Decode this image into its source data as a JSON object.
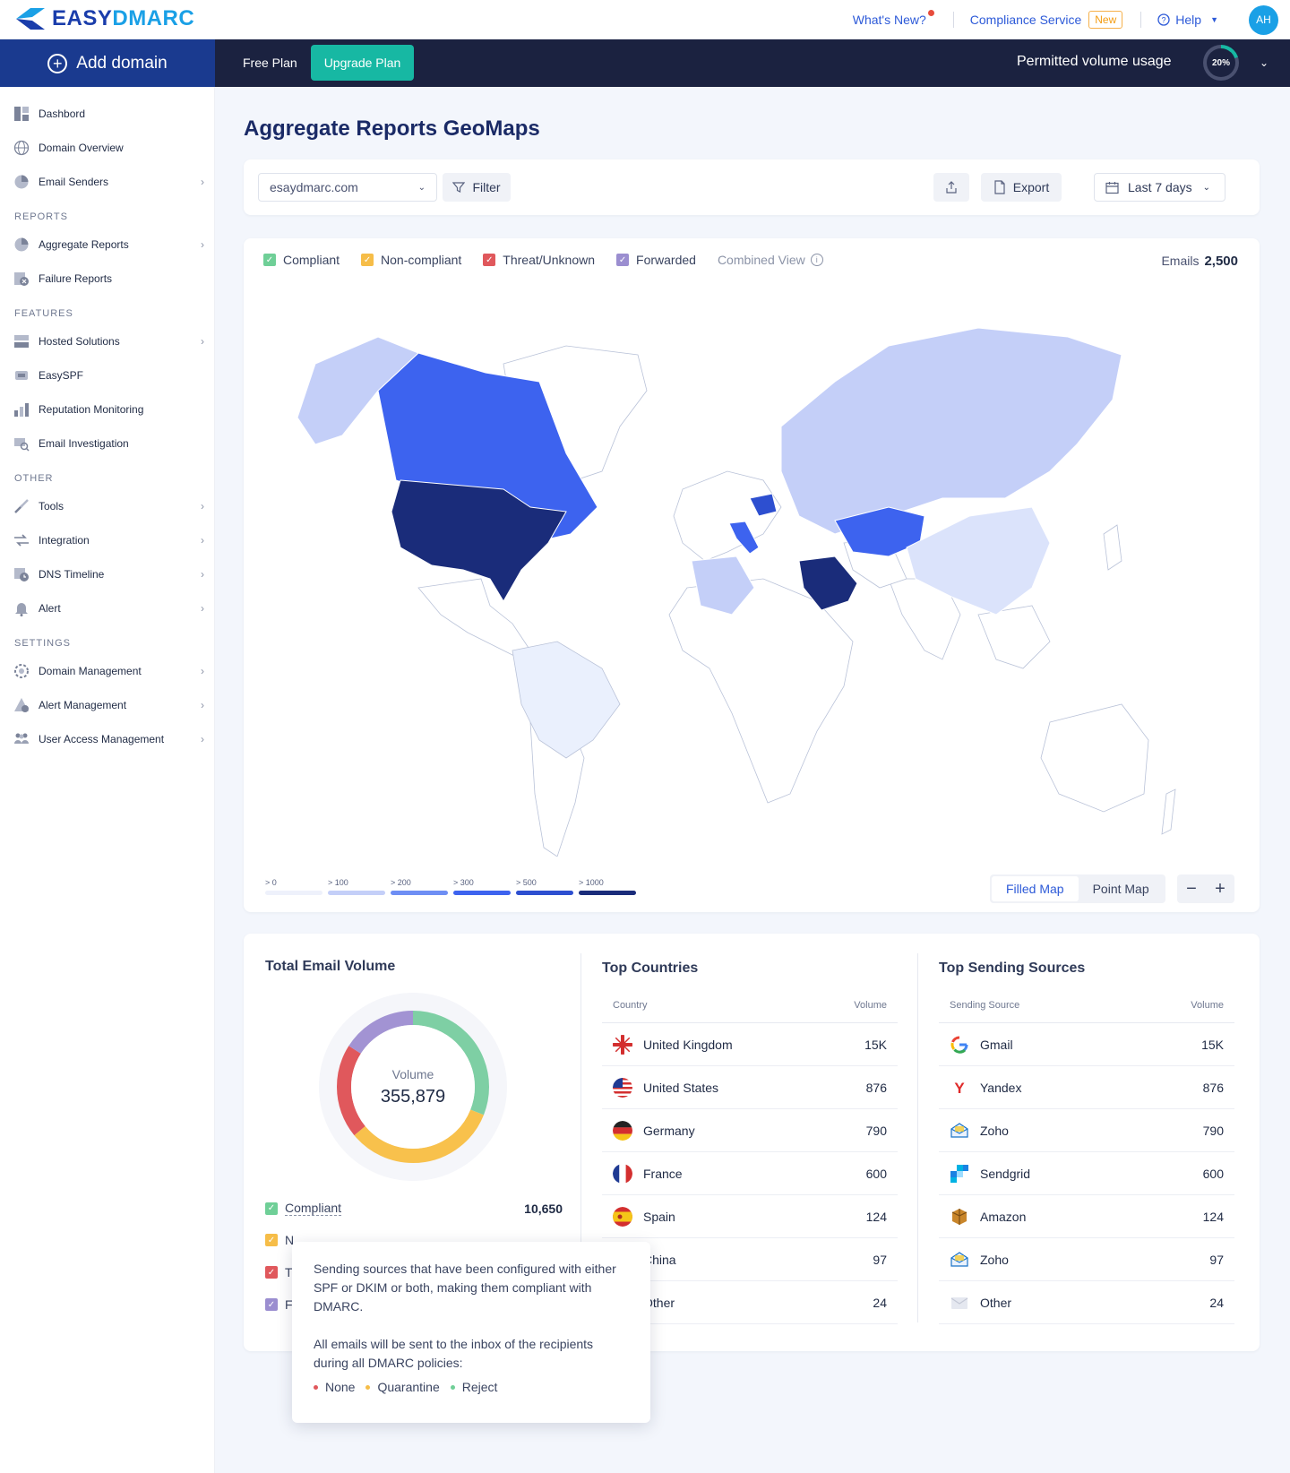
{
  "brand": {
    "name_a": "EASY",
    "name_b": "DMARC"
  },
  "topnav": {
    "whats_new": "What's New?",
    "compliance": "Compliance Service",
    "new_badge": "New",
    "help": "Help",
    "avatar": "AH"
  },
  "navbar": {
    "add_domain": "Add domain",
    "free_plan": "Free Plan",
    "upgrade": "Upgrade Plan",
    "volume_label": "Permitted volume usage",
    "volume_pct": "20%",
    "volume_fraction": 0.2
  },
  "sidebar": {
    "items_top": [
      {
        "label": "Dashbord",
        "icon": "dashboard-icon"
      },
      {
        "label": "Domain Overview",
        "icon": "globe-icon"
      },
      {
        "label": "Email Senders",
        "icon": "pie-icon",
        "chevron": true
      }
    ],
    "reports_title": "REPORTS",
    "reports": [
      {
        "label": "Aggregate Reports",
        "icon": "pie-icon",
        "chevron": true
      },
      {
        "label": "Failure Reports",
        "icon": "failure-icon"
      }
    ],
    "features_title": "FEATURES",
    "features": [
      {
        "label": "Hosted Solutions",
        "icon": "hosted-icon",
        "chevron": true
      },
      {
        "label": "EasySPF",
        "icon": "spf-icon"
      },
      {
        "label": "Reputation Monitoring",
        "icon": "reputation-icon"
      },
      {
        "label": "Email Investigation",
        "icon": "investigation-icon"
      }
    ],
    "other_title": "OTHER",
    "other": [
      {
        "label": "Tools",
        "icon": "tools-icon",
        "chevron": true
      },
      {
        "label": "Integration",
        "icon": "integration-icon",
        "chevron": true
      },
      {
        "label": "DNS Timeline",
        "icon": "dns-timeline-icon",
        "chevron": true
      },
      {
        "label": "Alert",
        "icon": "bell-icon",
        "chevron": true
      }
    ],
    "settings_title": "SETTINGS",
    "settings": [
      {
        "label": "Domain Management",
        "icon": "domain-management-icon",
        "chevron": true
      },
      {
        "label": "Alert Management",
        "icon": "alert-management-icon",
        "chevron": true
      },
      {
        "label": "User Access Management",
        "icon": "users-icon",
        "chevron": true
      }
    ]
  },
  "page": {
    "title": "Aggregate Reports GeoMaps"
  },
  "filters": {
    "domain": "esaydmarc.com",
    "filter": "Filter",
    "export": "Export",
    "range": "Last 7 days"
  },
  "map": {
    "legend": [
      {
        "label": "Compliant",
        "color": "#6fcf97"
      },
      {
        "label": "Non-compliant",
        "color": "#f6bd48"
      },
      {
        "label": "Threat/Unknown",
        "color": "#e0585c"
      },
      {
        "label": "Forwarded",
        "color": "#9b8ed0"
      }
    ],
    "combined": "Combined View",
    "emails_label": "Emails",
    "emails_value": "2,500",
    "scale": [
      {
        "label": "> 0",
        "color": "#eef1fb"
      },
      {
        "label": "> 100",
        "color": "#c4cff8"
      },
      {
        "label": "> 200",
        "color": "#6e8ef4"
      },
      {
        "label": "> 300",
        "color": "#3d63ef"
      },
      {
        "label": "> 500",
        "color": "#2d4fd0"
      },
      {
        "label": "> 1000",
        "color": "#1a2c7a"
      }
    ],
    "view_filled": "Filled Map",
    "view_point": "Point Map",
    "zoom_out": "−",
    "zoom_in": "+"
  },
  "volume": {
    "title": "Total Email Volume",
    "center_label": "Volume",
    "center_value": "355,879",
    "rows": [
      {
        "label": "Compliant",
        "value": "10,650",
        "color": "#6fcf97"
      },
      {
        "label": "N",
        "color": "#f6bd48"
      },
      {
        "label": "T",
        "color": "#e0585c"
      },
      {
        "label": "F",
        "color": "#9b8ed0"
      }
    ],
    "donut_segments": [
      {
        "color": "#7ecfa4",
        "fraction": 0.31
      },
      {
        "color": "#f8c14c",
        "fraction": 0.33
      },
      {
        "color": "#e0585c",
        "fraction": 0.2
      },
      {
        "color": "#a293d3",
        "fraction": 0.16
      }
    ]
  },
  "countries": {
    "title": "Top Countries",
    "col_name": "Country",
    "col_volume": "Volume",
    "rows": [
      {
        "name": "United Kingdom",
        "value": "15K",
        "flag": "uk-flag-icon"
      },
      {
        "name": "United States",
        "value": "876",
        "flag": "us-flag-icon"
      },
      {
        "name": "Germany",
        "value": "790",
        "flag": "de-flag-icon"
      },
      {
        "name": "France",
        "value": "600",
        "flag": "fr-flag-icon"
      },
      {
        "name": "Spain",
        "value": "124",
        "flag": "es-flag-icon"
      },
      {
        "name": "China",
        "value": "97",
        "flag": "cn-flag-icon"
      },
      {
        "name": "Other",
        "value": "24",
        "flag": "other-flag-icon"
      }
    ]
  },
  "sources": {
    "title": "Top Sending Sources",
    "col_name": "Sending Source",
    "col_volume": "Volume",
    "rows": [
      {
        "name": "Gmail",
        "value": "15K",
        "icon": "gmail-icon"
      },
      {
        "name": "Yandex",
        "value": "876",
        "icon": "yandex-icon"
      },
      {
        "name": "Zoho",
        "value": "790",
        "icon": "zoho-icon"
      },
      {
        "name": "Sendgrid",
        "value": "600",
        "icon": "sendgrid-icon"
      },
      {
        "name": "Amazon",
        "value": "124",
        "icon": "amazon-icon"
      },
      {
        "name": "Zoho",
        "value": "97",
        "icon": "zoho-icon"
      },
      {
        "name": "Other",
        "value": "24",
        "icon": "mail-icon"
      }
    ]
  },
  "tooltip": {
    "p1": "Sending sources that have been configured with either SPF or DKIM or both, making them compliant with DMARC.",
    "p2": "All emails will be sent to the inbox of the recipients during all DMARC policies:",
    "policies": [
      {
        "label": "None",
        "color": "#e0585c"
      },
      {
        "label": "Quarantine",
        "color": "#f6bd48"
      },
      {
        "label": "Reject",
        "color": "#6fcf97"
      }
    ]
  }
}
